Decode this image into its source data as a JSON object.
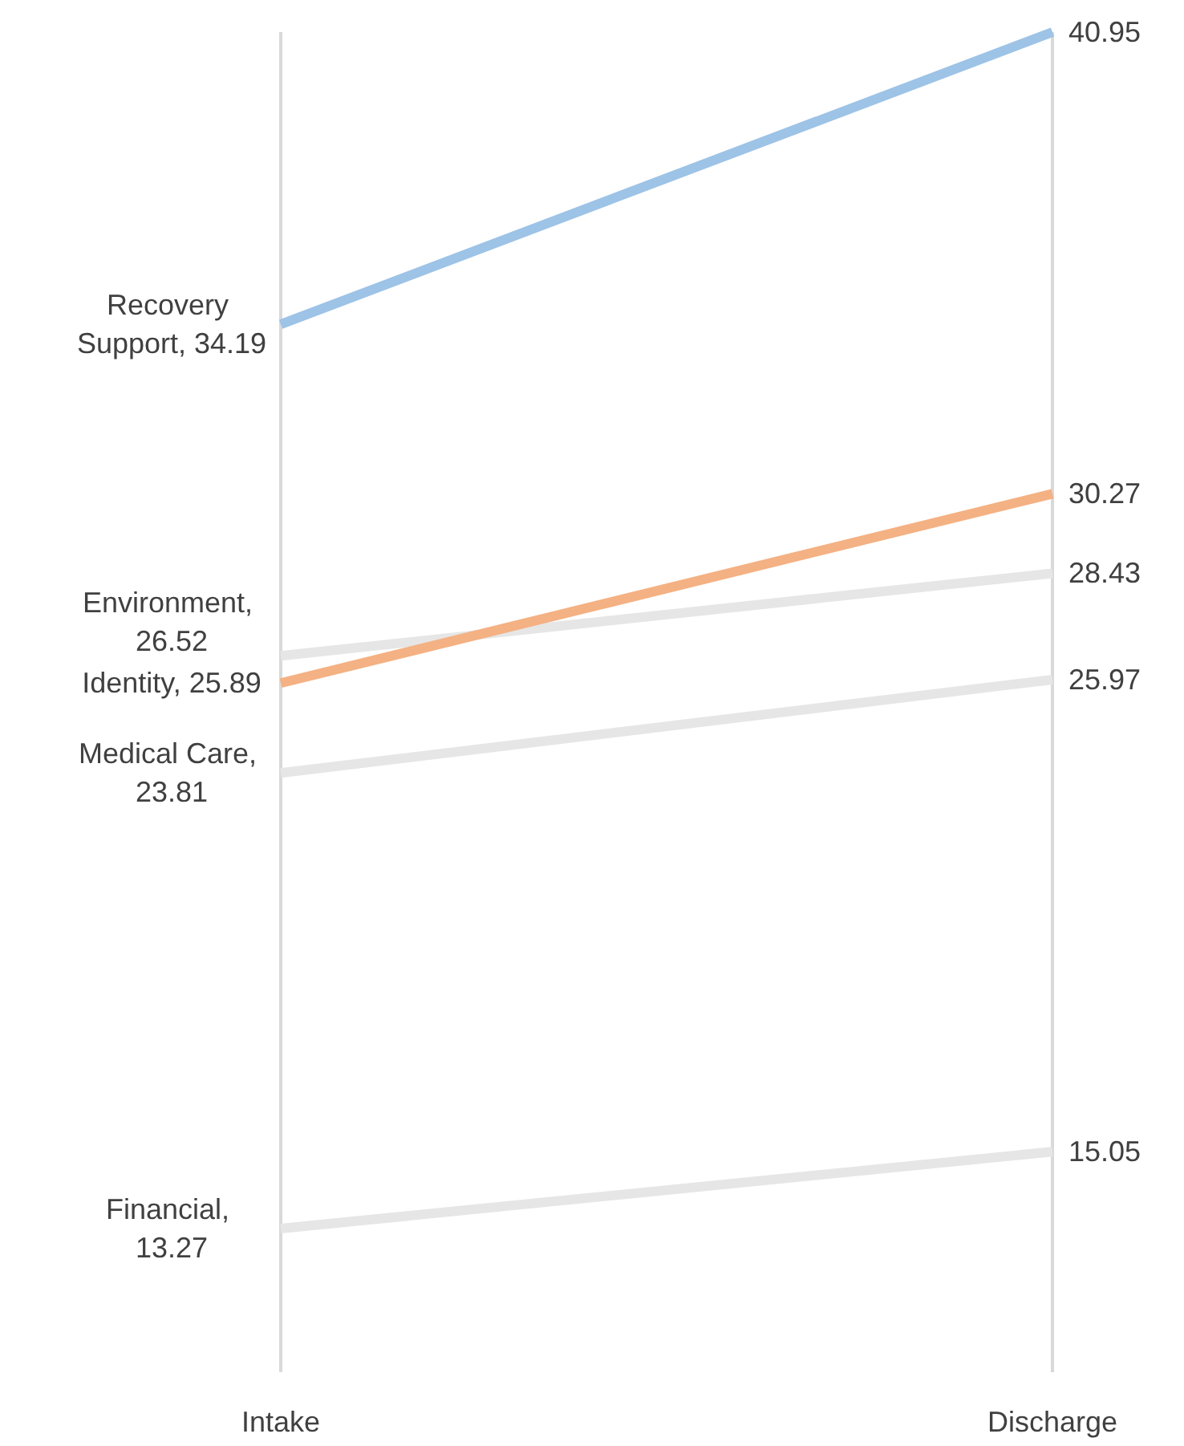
{
  "chart_data": {
    "type": "line",
    "categories": [
      "Intake",
      "Discharge"
    ],
    "series": [
      {
        "color": "#9dc3e6",
        "values": [
          34.19,
          40.95
        ],
        "value_labels": [
          "Recovery Support, 34.19",
          "40.95"
        ]
      },
      {
        "color": "#e6e6e6",
        "values": [
          26.52,
          28.43
        ],
        "value_labels": [
          "Environment, 26.52",
          "28.43"
        ]
      },
      {
        "color": "#f4b183",
        "values": [
          25.89,
          30.27
        ],
        "value_labels": [
          "Identity, 25.89",
          "30.27"
        ]
      },
      {
        "color": "#e6e6e6",
        "values": [
          23.81,
          25.97
        ],
        "value_labels": [
          "Medical Care, 23.81",
          "25.97"
        ]
      },
      {
        "color": "#e6e6e6",
        "values": [
          13.27,
          15.05
        ],
        "value_labels": [
          "Financial, 13.27",
          "15.05"
        ]
      }
    ],
    "grid": "x",
    "marker": "none",
    "line_style": "solid"
  }
}
